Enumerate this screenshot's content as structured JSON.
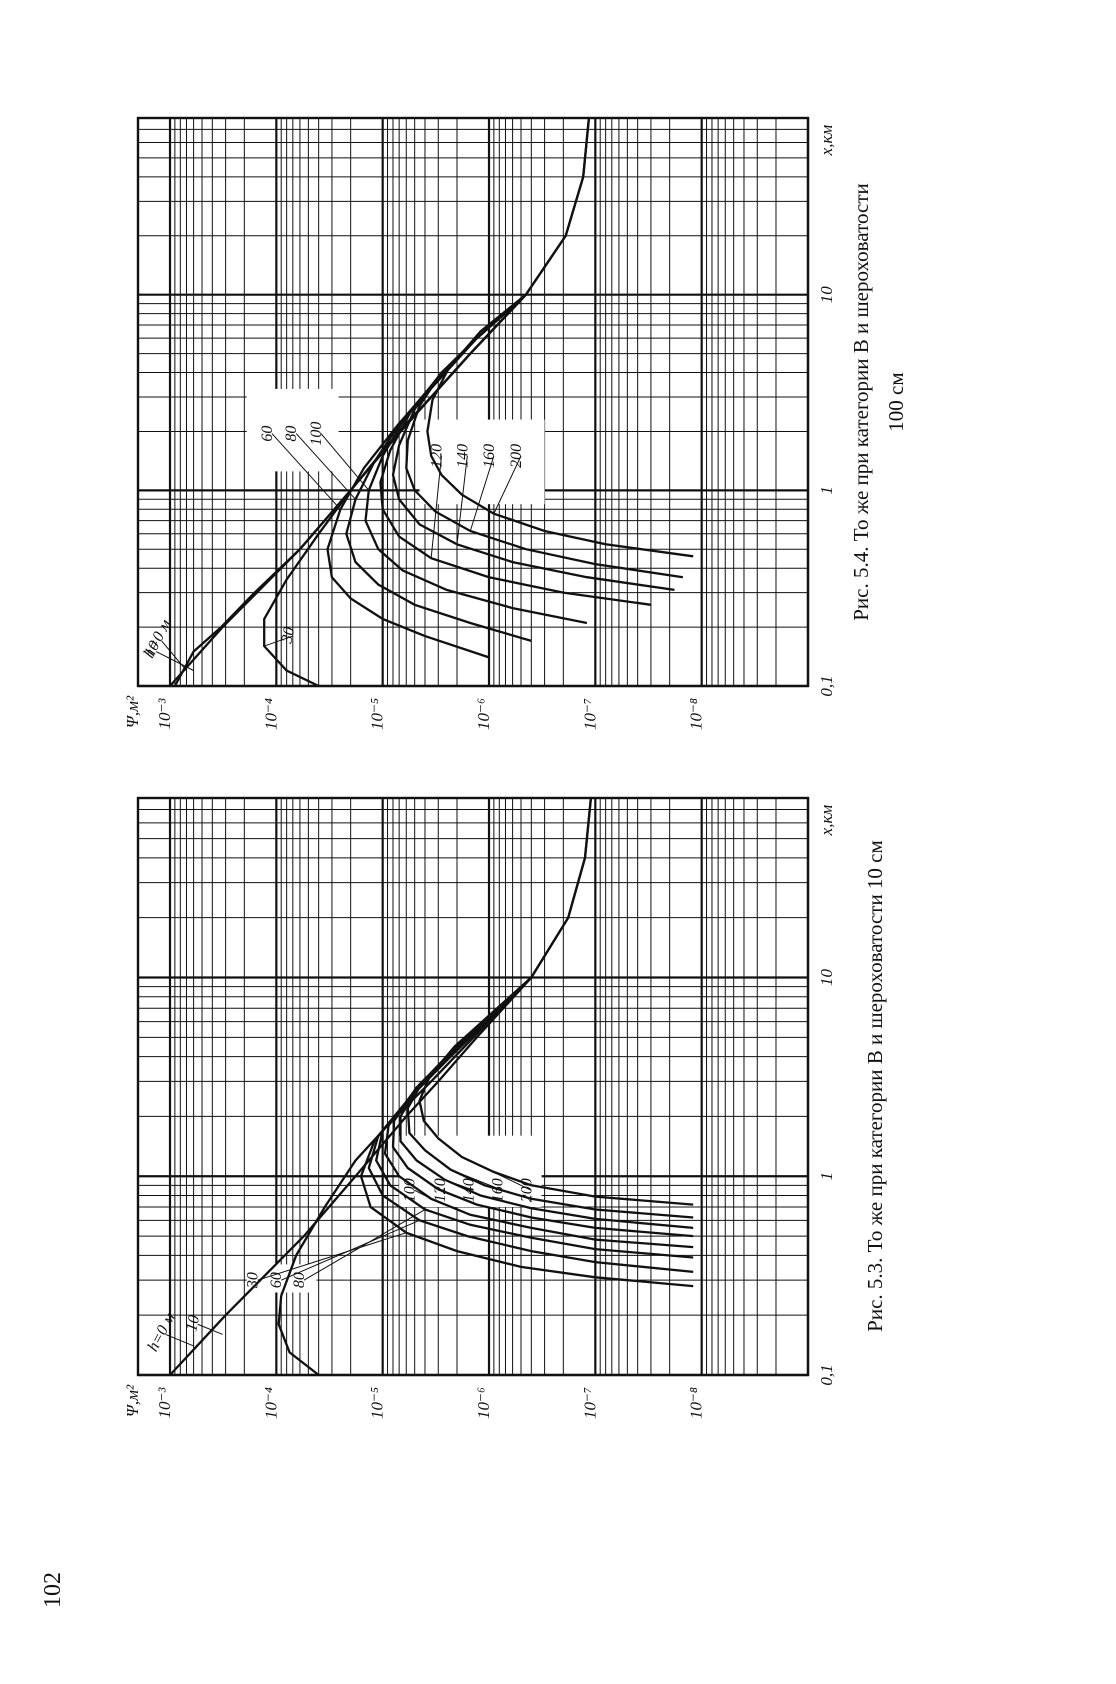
{
  "page": {
    "number": "102"
  },
  "colors": {
    "ink": "#111111",
    "paper": "#ffffff"
  },
  "chart_data": [
    {
      "type": "line",
      "figure_label": "Рис. 5.3.",
      "caption": "То же при категории B и шероховатости 10 см",
      "caption_line2": "",
      "xlabel": "x,км",
      "ylabel": "Ψ,м²",
      "x_scale": "log",
      "y_scale": "log",
      "xlim": [
        0.1,
        80
      ],
      "ylim": [
        1e-09,
        0.002
      ],
      "x_tick_labels": [
        "0,1",
        "1",
        "10"
      ],
      "y_tick_labels": [
        "10⁻³",
        "10⁻⁴",
        "10⁻⁵",
        "10⁻⁶",
        "10⁻⁷",
        "10⁻⁸"
      ],
      "series": [
        {
          "name": "h=0 м",
          "x": [
            0.1,
            0.2,
            0.5,
            1,
            2,
            3,
            5,
            10,
            20,
            40,
            80
          ],
          "y": [
            0.001,
            0.0003,
            5.5e-05,
            1.8e-05,
            6e-06,
            3e-06,
            1.3e-06,
            4e-07,
            1.8e-07,
            1.25e-07,
            1.1e-07
          ]
        },
        {
          "name": "10",
          "x": [
            0.1,
            0.13,
            0.18,
            0.25,
            0.4,
            0.7,
            1.2,
            2,
            3,
            5,
            10,
            20,
            40,
            80
          ],
          "y": [
            4e-05,
            7.5e-05,
            9.5e-05,
            9e-05,
            6.5e-05,
            3.5e-05,
            1.8e-05,
            7.5e-06,
            3.5e-06,
            1.4e-06,
            4e-07,
            1.8e-07,
            1.25e-07,
            1.1e-07
          ]
        },
        {
          "name": "30",
          "x": [
            0.28,
            0.31,
            0.35,
            0.42,
            0.52,
            0.7,
            1,
            1.5,
            2.5,
            4,
            10
          ],
          "y": [
            1.2e-08,
            1e-07,
            5e-07,
            2e-06,
            6e-06,
            1.3e-05,
            1.6e-05,
            1.2e-05,
            5.5e-06,
            2.3e-06,
            4e-07
          ]
        },
        {
          "name": "60",
          "x": [
            0.33,
            0.37,
            0.42,
            0.5,
            0.6,
            0.8,
            1.1,
            1.6,
            2.5,
            4,
            10
          ],
          "y": [
            1.2e-08,
            1e-07,
            4e-07,
            1.6e-06,
            4.5e-06,
            1e-05,
            1.35e-05,
            1.1e-05,
            5.5e-06,
            2.3e-06,
            4e-07
          ]
        },
        {
          "name": "80",
          "x": [
            0.39,
            0.43,
            0.49,
            0.57,
            0.68,
            0.9,
            1.2,
            1.7,
            2.6,
            4,
            10
          ],
          "y": [
            1.2e-08,
            1e-07,
            4e-07,
            1.5e-06,
            4e-06,
            8.5e-06,
            1.15e-05,
            1e-05,
            5.2e-06,
            2.3e-06,
            4e-07
          ]
        },
        {
          "name": "100",
          "x": [
            0.44,
            0.48,
            0.55,
            0.64,
            0.77,
            1,
            1.3,
            1.8,
            2.7,
            4,
            10
          ],
          "y": [
            1.2e-08,
            1e-07,
            4e-07,
            1.5e-06,
            3.5e-06,
            7e-06,
            9.5e-06,
            8.8e-06,
            5e-06,
            2.3e-06,
            4e-07
          ]
        },
        {
          "name": "120",
          "x": [
            0.5,
            0.55,
            0.62,
            0.72,
            0.86,
            1.1,
            1.4,
            1.9,
            2.8,
            4,
            10
          ],
          "y": [
            1.2e-08,
            1e-07,
            4e-07,
            1.3e-06,
            3e-06,
            5.8e-06,
            8e-06,
            7.8e-06,
            4.8e-06,
            2.3e-06,
            4e-07
          ]
        },
        {
          "name": "140",
          "x": [
            0.55,
            0.61,
            0.69,
            0.8,
            0.96,
            1.2,
            1.5,
            2,
            2.9,
            4.2,
            10
          ],
          "y": [
            1.2e-08,
            1e-07,
            4e-07,
            1.2e-06,
            2.6e-06,
            4.8e-06,
            6.8e-06,
            6.8e-06,
            4.5e-06,
            2.2e-06,
            4e-07
          ]
        },
        {
          "name": "160",
          "x": [
            0.62,
            0.68,
            0.77,
            0.9,
            1.08,
            1.35,
            1.65,
            2.2,
            3,
            4.3,
            10
          ],
          "y": [
            1.2e-08,
            1e-07,
            4e-07,
            1.1e-06,
            2.3e-06,
            4e-06,
            5.6e-06,
            5.8e-06,
            4.2e-06,
            2.2e-06,
            4e-07
          ]
        },
        {
          "name": "200",
          "x": [
            0.72,
            0.79,
            0.9,
            1.05,
            1.25,
            1.55,
            1.9,
            2.4,
            3.2,
            4.5,
            10
          ],
          "y": [
            1.2e-08,
            1e-07,
            4e-07,
            9e-07,
            1.8e-06,
            3e-06,
            4.1e-06,
            4.5e-06,
            3.6e-06,
            2.1e-06,
            4e-07
          ]
        }
      ]
    },
    {
      "type": "line",
      "figure_label": "Рис. 5.4.",
      "caption": "То же при категории B и шероховатости",
      "caption_line2": "100 см",
      "xlabel": "x,км",
      "ylabel": "Ψ,м²",
      "x_scale": "log",
      "y_scale": "log",
      "xlim": [
        0.1,
        80
      ],
      "ylim": [
        1e-09,
        0.002
      ],
      "x_tick_labels": [
        "0,1",
        "1",
        "10"
      ],
      "y_tick_labels": [
        "10⁻³",
        "10⁻⁴",
        "10⁻⁵",
        "10⁻⁶",
        "10⁻⁷",
        "10⁻⁸"
      ],
      "series": [
        {
          "name": "h=0 м",
          "x": [
            0.1,
            0.2,
            0.5,
            1,
            2,
            3,
            5,
            10,
            20,
            40,
            80
          ],
          "y": [
            0.001,
            0.00032,
            6e-05,
            2e-05,
            7e-06,
            3.5e-06,
            1.5e-06,
            4.5e-07,
            1.9e-07,
            1.3e-07,
            1.15e-07
          ]
        },
        {
          "name": "10",
          "x": [
            0.1,
            0.15,
            0.2,
            0.3,
            0.5,
            1,
            2,
            3,
            5,
            10,
            20,
            40,
            80
          ],
          "y": [
            0.0009,
            0.0006,
            0.00033,
            0.00016,
            6e-05,
            2e-05,
            7e-06,
            3.5e-06,
            1.5e-06,
            4.5e-07,
            1.9e-07,
            1.3e-07,
            1.15e-07
          ]
        },
        {
          "name": "30",
          "x": [
            0.1,
            0.12,
            0.16,
            0.22,
            0.35,
            0.6,
            1,
            1.8,
            3,
            5,
            10
          ],
          "y": [
            4e-05,
            8e-05,
            0.00013,
            0.00013,
            8e-05,
            4e-05,
            2e-05,
            8e-06,
            3.5e-06,
            1.5e-06,
            4.5e-07
          ]
        },
        {
          "name": "60",
          "x": [
            0.14,
            0.18,
            0.22,
            0.28,
            0.36,
            0.5,
            0.8,
            1.3,
            2.2,
            3.5,
            6,
            10
          ],
          "y": [
            1e-06,
            4e-06,
            1e-05,
            2e-05,
            3e-05,
            3.3e-05,
            2.5e-05,
            1.5e-05,
            7e-06,
            3.2e-06,
            1.3e-06,
            4.5e-07
          ]
        },
        {
          "name": "80",
          "x": [
            0.17,
            0.21,
            0.26,
            0.33,
            0.43,
            0.6,
            0.9,
            1.4,
            2.3,
            3.6,
            6,
            10
          ],
          "y": [
            4e-07,
            1.5e-06,
            5e-06,
            1.1e-05,
            1.8e-05,
            2.2e-05,
            1.8e-05,
            1.2e-05,
            6.5e-06,
            3.2e-06,
            1.3e-06,
            4.5e-07
          ]
        },
        {
          "name": "100",
          "x": [
            0.21,
            0.25,
            0.31,
            0.39,
            0.5,
            0.7,
            1,
            1.5,
            2.4,
            3.7,
            6,
            10
          ],
          "y": [
            1.2e-07,
            6e-07,
            2.5e-06,
            6.5e-06,
            1.1e-05,
            1.45e-05,
            1.35e-05,
            1e-05,
            6e-06,
            3.1e-06,
            1.3e-06,
            4.5e-07
          ]
        },
        {
          "name": "120",
          "x": [
            0.26,
            0.3,
            0.36,
            0.45,
            0.58,
            0.8,
            1.1,
            1.6,
            2.5,
            3.8,
            6,
            10
          ],
          "y": [
            3e-08,
            2e-07,
            1e-06,
            3.5e-06,
            7e-06,
            1e-05,
            1.05e-05,
            8.5e-06,
            5.5e-06,
            3e-06,
            1.3e-06,
            4.5e-07
          ]
        },
        {
          "name": "140",
          "x": [
            0.31,
            0.36,
            0.43,
            0.53,
            0.67,
            0.9,
            1.2,
            1.7,
            2.6,
            3.9,
            6,
            10
          ],
          "y": [
            1.8e-08,
            1.2e-07,
            6e-07,
            2e-06,
            4.5e-06,
            7e-06,
            8e-06,
            7e-06,
            5e-06,
            2.9e-06,
            1.3e-06,
            4.5e-07
          ]
        },
        {
          "name": "160",
          "x": [
            0.36,
            0.42,
            0.5,
            0.62,
            0.78,
            1,
            1.3,
            1.8,
            2.7,
            4,
            6,
            10
          ],
          "y": [
            1.5e-08,
            1e-07,
            4.5e-07,
            1.5e-06,
            3.2e-06,
            5e-06,
            6e-06,
            5.8e-06,
            4.5e-06,
            2.8e-06,
            1.3e-06,
            4.5e-07
          ]
        },
        {
          "name": "200",
          "x": [
            0.46,
            0.53,
            0.62,
            0.76,
            0.95,
            1.2,
            1.5,
            2,
            2.9,
            4.2,
            6.5,
            10
          ],
          "y": [
            1.2e-08,
            8e-08,
            3e-07,
            9e-07,
            1.8e-06,
            2.8e-06,
            3.5e-06,
            3.8e-06,
            3.4e-06,
            2.4e-06,
            1.2e-06,
            4.5e-07
          ]
        }
      ]
    }
  ]
}
